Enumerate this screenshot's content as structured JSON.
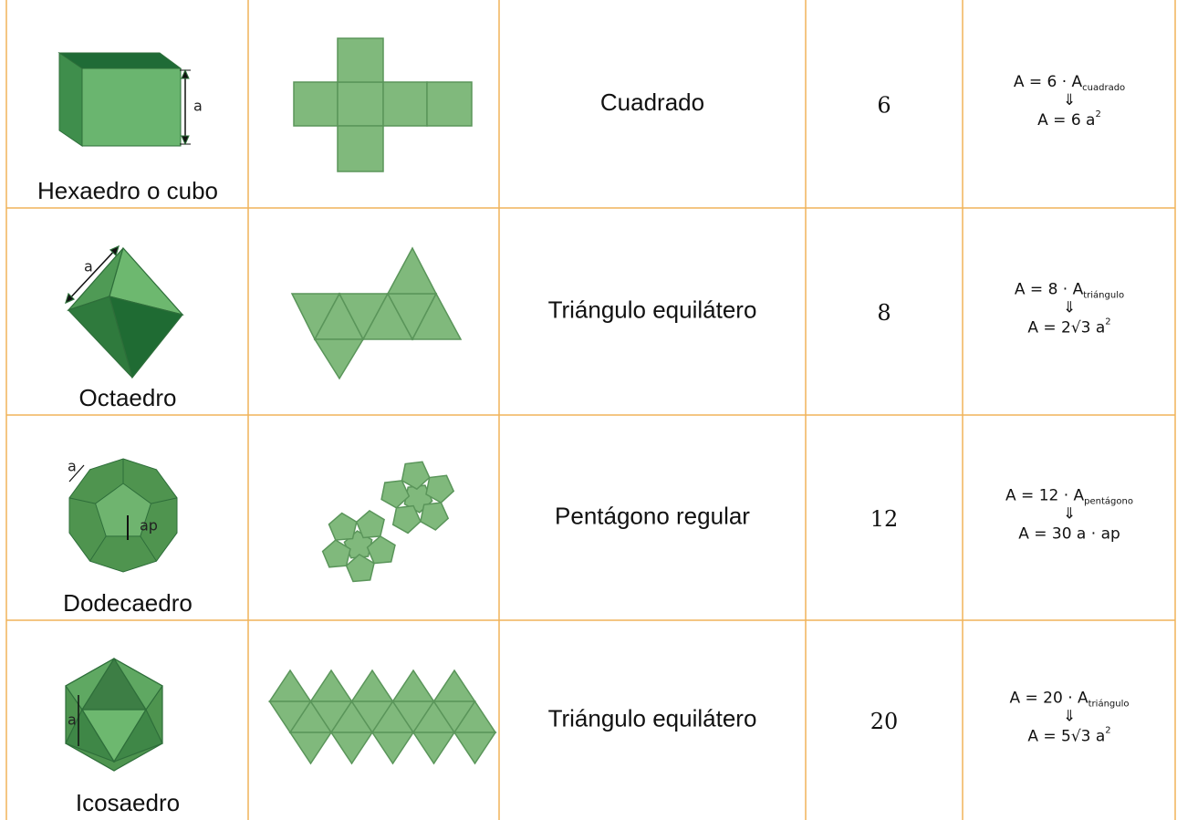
{
  "table": {
    "rows": [
      {
        "name": "Hexaedro o cubo",
        "solid_labels": [
          "a"
        ],
        "face": "Cuadrado",
        "faces": 6,
        "formula": {
          "lhs": "A = 6 · A",
          "subscript": "cuadrado",
          "arrow": "⇓",
          "rhs": "A = 6 a",
          "superscript": "2"
        }
      },
      {
        "name": "Octaedro",
        "solid_labels": [
          "a"
        ],
        "face": "Triángulo equilátero",
        "faces": 8,
        "formula": {
          "lhs": "A = 8 · A",
          "subscript": "triángulo",
          "arrow": "⇓",
          "rhs": "A = 2√3 a",
          "superscript": "2"
        }
      },
      {
        "name": "Dodecaedro",
        "solid_labels": [
          "a",
          "ap"
        ],
        "face": "Pentágono regular",
        "faces": 12,
        "formula": {
          "lhs": "A = 12 · A",
          "subscript": "pentágono",
          "arrow": "⇓",
          "rhs": "A = 30 a · ap"
        }
      },
      {
        "name": "Icosaedro",
        "solid_labels": [
          "a"
        ],
        "face": "Triángulo equilátero",
        "faces": 20,
        "formula": {
          "lhs": "A = 20 · A",
          "subscript": "triángulo",
          "arrow": "⇓",
          "rhs": "A = 5√3 a",
          "superscript": "2"
        }
      }
    ]
  }
}
